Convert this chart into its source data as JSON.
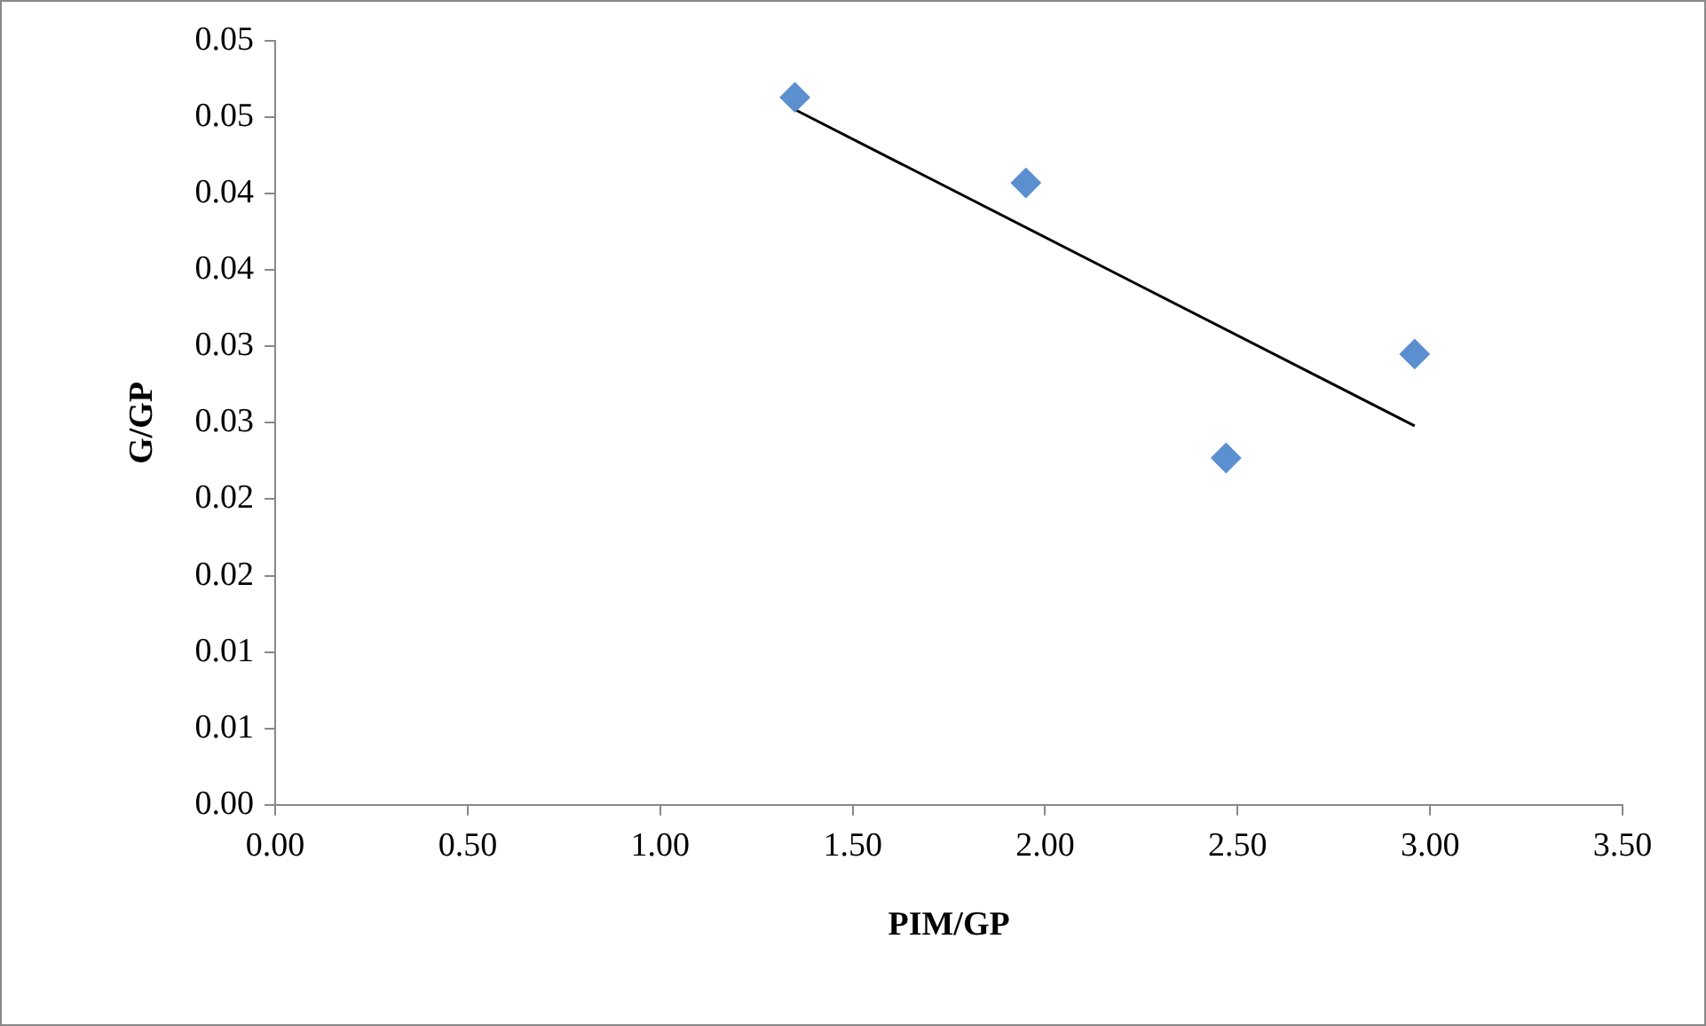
{
  "chart_data": {
    "type": "scatter",
    "xlabel": "PIM/GP",
    "ylabel": "G/GP",
    "xlim": [
      0,
      3.5
    ],
    "xticks": [
      {
        "value": 0,
        "label": "0.00"
      },
      {
        "value": 0.5,
        "label": "0.50"
      },
      {
        "value": 1,
        "label": "1.00"
      },
      {
        "value": 1.5,
        "label": "1.50"
      },
      {
        "value": 2,
        "label": "2.00"
      },
      {
        "value": 2.5,
        "label": "2.50"
      },
      {
        "value": 3,
        "label": "3.00"
      },
      {
        "value": 3.5,
        "label": "3.50"
      }
    ],
    "ylim": [
      0,
      0.05
    ],
    "yticks": [
      {
        "value": 0,
        "label": "0.00"
      },
      {
        "value": 0.005,
        "label": "0.01"
      },
      {
        "value": 0.01,
        "label": "0.01"
      },
      {
        "value": 0.015,
        "label": "0.02"
      },
      {
        "value": 0.02,
        "label": "0.02"
      },
      {
        "value": 0.025,
        "label": "0.03"
      },
      {
        "value": 0.03,
        "label": "0.03"
      },
      {
        "value": 0.035,
        "label": "0.04"
      },
      {
        "value": 0.04,
        "label": "0.04"
      },
      {
        "value": 0.045,
        "label": "0.05"
      },
      {
        "value": 0.05,
        "label": "0.05"
      }
    ],
    "grid": false,
    "legend": false,
    "marker": "diamond",
    "series": [
      {
        "color": "#5b8fd0",
        "x": [
          1.35,
          1.95,
          2.47,
          2.96
        ],
        "values": [
          0.0463,
          0.0407,
          0.0227,
          0.0295
        ]
      },
      {
        "type": "line",
        "color": "#000000",
        "marker": "none",
        "x": [
          1.35,
          2.96
        ],
        "values": [
          0.0455,
          0.0248
        ]
      }
    ]
  }
}
